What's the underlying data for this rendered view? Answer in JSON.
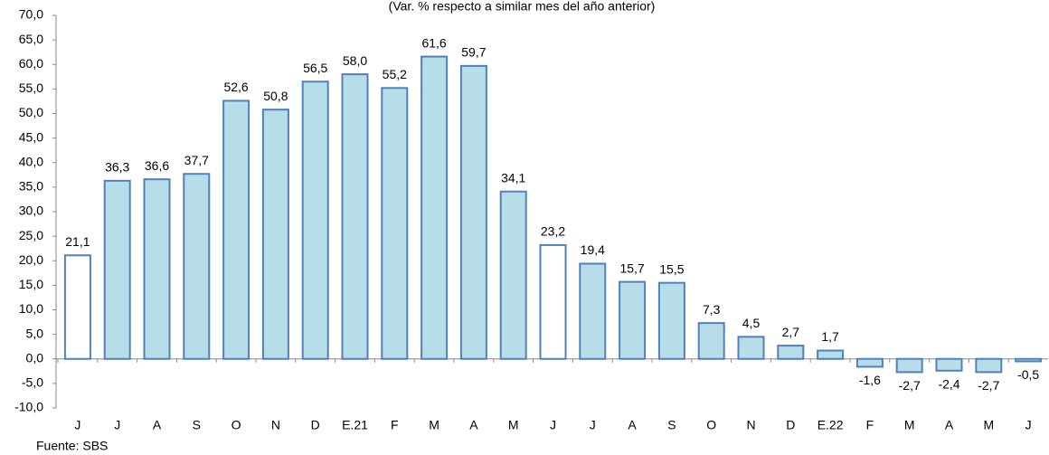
{
  "chart_data": {
    "type": "bar",
    "subtitle": "(Var. % respecto a similar mes del año anterior)",
    "source": "Fuente: SBS",
    "categories": [
      "J",
      "J",
      "A",
      "S",
      "O",
      "N",
      "D",
      "E.21",
      "F",
      "M",
      "A",
      "M",
      "J",
      "J",
      "A",
      "S",
      "O",
      "N",
      "D",
      "E.22",
      "F",
      "M",
      "A",
      "M",
      "J"
    ],
    "values": [
      21.1,
      36.3,
      36.6,
      37.7,
      52.6,
      50.8,
      56.5,
      58.0,
      55.2,
      61.6,
      59.7,
      34.1,
      23.2,
      19.4,
      15.7,
      15.5,
      7.3,
      4.5,
      2.7,
      1.7,
      -1.6,
      -2.7,
      -2.4,
      -2.7,
      -0.5
    ],
    "value_labels": [
      "21,1",
      "36,3",
      "36,6",
      "37,7",
      "52,6",
      "50,8",
      "56,5",
      "58,0",
      "55,2",
      "61,6",
      "59,7",
      "34,1",
      "23,2",
      "19,4",
      "15,7",
      "15,5",
      "7,3",
      "4,5",
      "2,7",
      "1,7",
      "-1,6",
      "-2,7",
      "-2,4",
      "-2,7",
      "-0,5"
    ],
    "colors": [
      "#ffffff",
      "#b7dde8",
      "#b7dde8",
      "#b7dde8",
      "#b7dde8",
      "#b7dde8",
      "#b7dde8",
      "#b7dde8",
      "#b7dde8",
      "#b7dde8",
      "#b7dde8",
      "#b7dde8",
      "#ffffff",
      "#b7dde8",
      "#b7dde8",
      "#b7dde8",
      "#b7dde8",
      "#b7dde8",
      "#b7dde8",
      "#b7dde8",
      "#b7dde8",
      "#b7dde8",
      "#b7dde8",
      "#b7dde8",
      "#b7dde8"
    ],
    "edge_color": "#4f81bd",
    "ylim": [
      -10,
      70
    ],
    "yticks": [
      {
        "value": -10,
        "label": "-10,0"
      },
      {
        "value": -5,
        "label": "-5,0"
      },
      {
        "value": 0,
        "label": "0,0"
      },
      {
        "value": 5,
        "label": "5,0"
      },
      {
        "value": 10,
        "label": "10,0"
      },
      {
        "value": 15,
        "label": "15,0"
      },
      {
        "value": 20,
        "label": "20,0"
      },
      {
        "value": 25,
        "label": "25,0"
      },
      {
        "value": 30,
        "label": "30,0"
      },
      {
        "value": 35,
        "label": "35,0"
      },
      {
        "value": 40,
        "label": "40,0"
      },
      {
        "value": 45,
        "label": "45,0"
      },
      {
        "value": 50,
        "label": "50,0"
      },
      {
        "value": 55,
        "label": "55,0"
      },
      {
        "value": 60,
        "label": "60,0"
      },
      {
        "value": 65,
        "label": "65,0"
      },
      {
        "value": 70,
        "label": "70,0"
      }
    ]
  }
}
